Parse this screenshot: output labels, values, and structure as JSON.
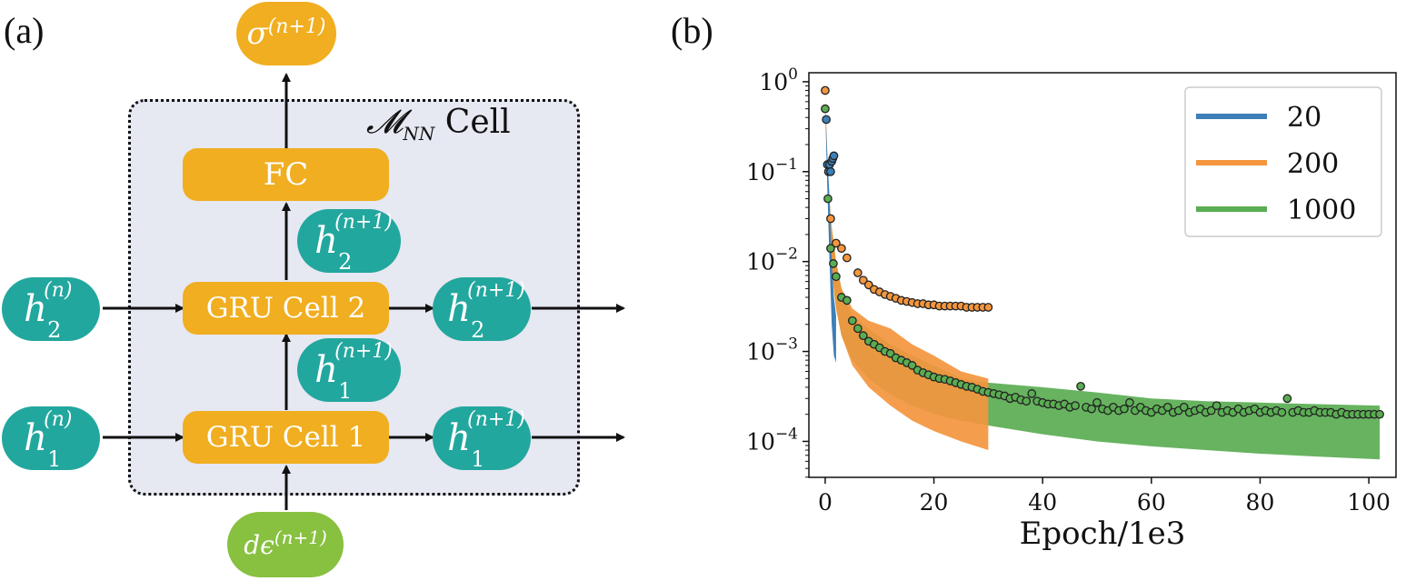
{
  "panels": {
    "a": "(a)",
    "b": "(b)"
  },
  "diagram": {
    "cell_label": {
      "symbol": "𝓜",
      "subscript": "NN",
      "text": "Cell"
    },
    "output_node": {
      "symbol": "σ",
      "superscript": "(n+1)"
    },
    "fc_label": "FC",
    "gru1_label": "GRU Cell 1",
    "gru2_label": "GRU Cell 2",
    "h2_in": {
      "symbol": "h",
      "superscript": "(n)",
      "subscript": "2"
    },
    "h1_in": {
      "symbol": "h",
      "superscript": "(n)",
      "subscript": "1"
    },
    "h2_out": {
      "symbol": "h",
      "superscript": "(n+1)",
      "subscript": "2"
    },
    "h1_out": {
      "symbol": "h",
      "superscript": "(n+1)",
      "subscript": "1"
    },
    "h2_mid": {
      "symbol": "h",
      "superscript": "(n+1)",
      "subscript": "2"
    },
    "h1_mid": {
      "symbol": "h",
      "superscript": "(n+1)",
      "subscript": "1"
    },
    "input_node": {
      "symbol": "dϵ",
      "superscript": "(n+1)"
    },
    "colors": {
      "teal": "#22a79e",
      "orange": "#f0ae20",
      "green": "#88c040",
      "box": "#e6e8f2"
    }
  },
  "chart_data": {
    "type": "line",
    "xlabel": "Epoch/1e3",
    "ylabel": "",
    "title": "",
    "xlim": [
      -3,
      105
    ],
    "ylim_log10": [
      -4.4,
      0.1
    ],
    "yscale": "log",
    "xticks": [
      0,
      20,
      40,
      60,
      80,
      100
    ],
    "yticks": [
      {
        "exp": 0,
        "label": "10",
        "sup": "0"
      },
      {
        "exp": -1,
        "label": "10",
        "sup": "−1"
      },
      {
        "exp": -2,
        "label": "10",
        "sup": "−2"
      },
      {
        "exp": -3,
        "label": "10",
        "sup": "−3"
      },
      {
        "exp": -4,
        "label": "10",
        "sup": "−4"
      }
    ],
    "legend_position": "top-right",
    "series": [
      {
        "name": "20",
        "color": "#3d7fb8",
        "x_end": 2,
        "train_lower": [
          [
            0,
            0.6
          ],
          [
            0.3,
            0.1
          ],
          [
            0.8,
            0.01
          ],
          [
            1.2,
            0.002
          ],
          [
            1.6,
            0.0009
          ],
          [
            2,
            0.00075
          ]
        ],
        "train_upper": [
          [
            0,
            0.6
          ],
          [
            0.3,
            0.2
          ],
          [
            0.8,
            0.05
          ],
          [
            1.2,
            0.01
          ],
          [
            1.6,
            0.004
          ],
          [
            2,
            0.0025
          ]
        ],
        "points": [
          [
            0.2,
            0.38
          ],
          [
            0.4,
            0.12
          ],
          [
            0.6,
            0.1
          ],
          [
            0.8,
            0.12
          ],
          [
            1.0,
            0.1
          ],
          [
            1.2,
            0.13
          ],
          [
            1.4,
            0.14
          ],
          [
            1.6,
            0.15
          ]
        ]
      },
      {
        "name": "200",
        "color": "#f3963e",
        "x_end": 30,
        "train_lower": [
          [
            0,
            0.8
          ],
          [
            0.5,
            0.05
          ],
          [
            1,
            0.01
          ],
          [
            2,
            0.003
          ],
          [
            3,
            0.0015
          ],
          [
            5,
            0.0007
          ],
          [
            8,
            0.0004
          ],
          [
            12,
            0.00025
          ],
          [
            16,
            0.00017
          ],
          [
            20,
            0.00013
          ],
          [
            25,
            0.0001
          ],
          [
            30,
            8e-05
          ]
        ],
        "train_upper": [
          [
            0,
            0.8
          ],
          [
            0.5,
            0.1
          ],
          [
            1,
            0.03
          ],
          [
            2,
            0.01
          ],
          [
            3,
            0.005
          ],
          [
            5,
            0.003
          ],
          [
            8,
            0.0022
          ],
          [
            12,
            0.0018
          ],
          [
            16,
            0.0012
          ],
          [
            20,
            0.0009
          ],
          [
            25,
            0.0006
          ],
          [
            30,
            0.0005
          ]
        ],
        "points": [
          [
            0,
            0.8
          ],
          [
            1,
            0.03
          ],
          [
            2,
            0.016
          ],
          [
            3,
            0.014
          ],
          [
            4,
            0.011
          ],
          [
            6,
            0.0075
          ],
          [
            7,
            0.0062
          ],
          [
            8,
            0.0055
          ],
          [
            9,
            0.0049
          ],
          [
            10,
            0.0046
          ],
          [
            11,
            0.0043
          ],
          [
            12,
            0.0041
          ],
          [
            13,
            0.0039
          ],
          [
            14,
            0.0037
          ],
          [
            15,
            0.0036
          ],
          [
            16,
            0.0035
          ],
          [
            17,
            0.0034
          ],
          [
            18,
            0.0034
          ],
          [
            19,
            0.0033
          ],
          [
            20,
            0.0033
          ],
          [
            21,
            0.0032
          ],
          [
            22,
            0.0032
          ],
          [
            23,
            0.0032
          ],
          [
            24,
            0.0032
          ],
          [
            25,
            0.0032
          ],
          [
            26,
            0.0031
          ],
          [
            27,
            0.0031
          ],
          [
            28,
            0.0031
          ],
          [
            29,
            0.0031
          ],
          [
            30,
            0.0031
          ]
        ]
      },
      {
        "name": "1000",
        "color": "#5aad52",
        "x_end": 102,
        "train_lower": [
          [
            0,
            0.5
          ],
          [
            0.5,
            0.05
          ],
          [
            1,
            0.01
          ],
          [
            2,
            0.003
          ],
          [
            3,
            0.0015
          ],
          [
            5,
            0.0008
          ],
          [
            8,
            0.0005
          ],
          [
            12,
            0.00033
          ],
          [
            16,
            0.00025
          ],
          [
            20,
            0.0002
          ],
          [
            25,
            0.00017
          ],
          [
            30,
            0.00015
          ],
          [
            40,
            0.00012
          ],
          [
            50,
            0.0001
          ],
          [
            60,
            8.8e-05
          ],
          [
            70,
            8e-05
          ],
          [
            80,
            7.3e-05
          ],
          [
            90,
            6.8e-05
          ],
          [
            102,
            6.3e-05
          ]
        ],
        "train_upper": [
          [
            0,
            0.5
          ],
          [
            0.5,
            0.1
          ],
          [
            1,
            0.03
          ],
          [
            2,
            0.01
          ],
          [
            3,
            0.005
          ],
          [
            5,
            0.0025
          ],
          [
            8,
            0.0018
          ],
          [
            12,
            0.0012
          ],
          [
            16,
            0.0009
          ],
          [
            20,
            0.0007
          ],
          [
            25,
            0.0005
          ],
          [
            30,
            0.00045
          ],
          [
            40,
            0.0004
          ],
          [
            50,
            0.00035
          ],
          [
            60,
            0.0003
          ],
          [
            70,
            0.00028
          ],
          [
            80,
            0.00027
          ],
          [
            90,
            0.00026
          ],
          [
            102,
            0.00025
          ]
        ],
        "points": [
          [
            0,
            0.5
          ],
          [
            0.5,
            0.05
          ],
          [
            1,
            0.014
          ],
          [
            1.5,
            0.0095
          ],
          [
            2,
            0.0068
          ],
          [
            3,
            0.004
          ],
          [
            4,
            0.0037
          ],
          [
            5,
            0.0022
          ],
          [
            6,
            0.0018
          ],
          [
            7,
            0.0015
          ],
          [
            8,
            0.0013
          ],
          [
            9,
            0.0012
          ],
          [
            10,
            0.0011
          ],
          [
            11,
            0.001
          ],
          [
            12,
            0.00095
          ],
          [
            13,
            0.00085
          ],
          [
            14,
            0.0008
          ],
          [
            15,
            0.00075
          ],
          [
            16,
            0.0007
          ],
          [
            17,
            0.00062
          ],
          [
            18,
            0.00058
          ],
          [
            19,
            0.00055
          ],
          [
            20,
            0.00052
          ],
          [
            21,
            0.0005
          ],
          [
            22,
            0.00049
          ],
          [
            23,
            0.00047
          ],
          [
            24,
            0.00045
          ],
          [
            25,
            0.00043
          ],
          [
            26,
            0.00041
          ],
          [
            27,
            0.0004
          ],
          [
            28,
            0.00038
          ],
          [
            29,
            0.00036
          ],
          [
            30,
            0.00035
          ],
          [
            31,
            0.00034
          ],
          [
            32,
            0.00033
          ],
          [
            33,
            0.00032
          ],
          [
            34,
            0.0003
          ],
          [
            35,
            0.00031
          ],
          [
            36,
            0.00029
          ],
          [
            37,
            0.00028
          ],
          [
            38,
            0.00034
          ],
          [
            39,
            0.00028
          ],
          [
            40,
            0.00027
          ],
          [
            41,
            0.00026
          ],
          [
            42,
            0.00026
          ],
          [
            43,
            0.00025
          ],
          [
            44,
            0.00026
          ],
          [
            45,
            0.00024
          ],
          [
            46,
            0.00025
          ],
          [
            47,
            0.00041
          ],
          [
            48,
            0.00024
          ],
          [
            49,
            0.00023
          ],
          [
            50,
            0.00027
          ],
          [
            51,
            0.00023
          ],
          [
            52,
            0.00022
          ],
          [
            53,
            0.00024
          ],
          [
            54,
            0.00022
          ],
          [
            55,
            0.00023
          ],
          [
            56,
            0.00027
          ],
          [
            57,
            0.00022
          ],
          [
            58,
            0.00024
          ],
          [
            59,
            0.00022
          ],
          [
            60,
            0.00021
          ],
          [
            61,
            0.00023
          ],
          [
            62,
            0.00022
          ],
          [
            63,
            0.00024
          ],
          [
            64,
            0.00021
          ],
          [
            65,
            0.00022
          ],
          [
            66,
            0.00024
          ],
          [
            67,
            0.00021
          ],
          [
            68,
            0.00022
          ],
          [
            69,
            0.00023
          ],
          [
            70,
            0.00021
          ],
          [
            71,
            0.00022
          ],
          [
            72,
            0.00025
          ],
          [
            73,
            0.00021
          ],
          [
            74,
            0.00022
          ],
          [
            75,
            0.00021
          ],
          [
            76,
            0.00023
          ],
          [
            77,
            0.00021
          ],
          [
            78,
            0.00022
          ],
          [
            79,
            0.00023
          ],
          [
            80,
            0.00021
          ],
          [
            81,
            0.00022
          ],
          [
            82,
            0.00021
          ],
          [
            83,
            0.00022
          ],
          [
            84,
            0.00021
          ],
          [
            85,
            0.0003
          ],
          [
            86,
            0.00021
          ],
          [
            87,
            0.00022
          ],
          [
            88,
            0.00021
          ],
          [
            89,
            0.00021
          ],
          [
            90,
            0.00022
          ],
          [
            91,
            0.00021
          ],
          [
            92,
            0.00021
          ],
          [
            93,
            0.00021
          ],
          [
            94,
            0.0002
          ],
          [
            95,
            0.00021
          ],
          [
            96,
            0.0002
          ],
          [
            97,
            0.0002
          ],
          [
            98,
            0.0002
          ],
          [
            99,
            0.0002
          ],
          [
            100,
            0.0002
          ],
          [
            101,
            0.0002
          ],
          [
            102,
            0.0002
          ]
        ]
      }
    ]
  }
}
